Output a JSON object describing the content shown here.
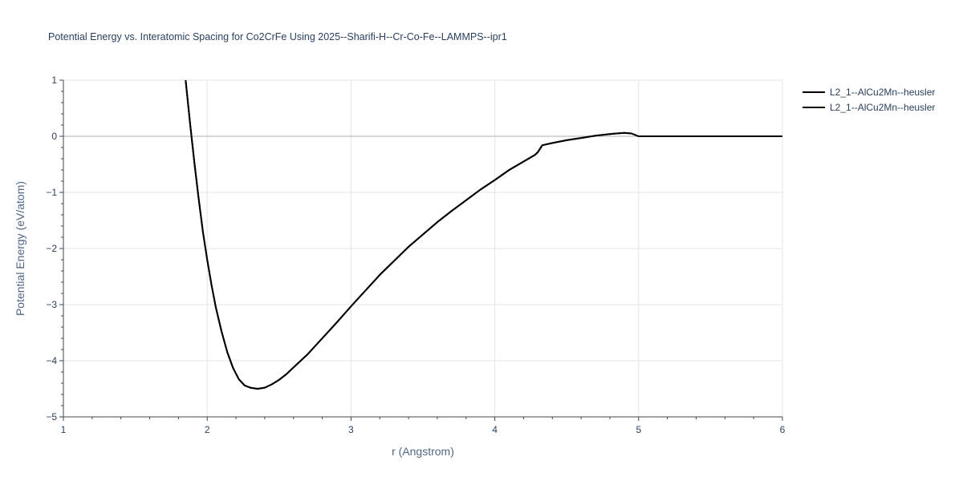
{
  "chart_data": {
    "type": "line",
    "title": "Potential Energy vs. Interatomic Spacing for Co2CrFe Using 2025--Sharifi-H--Cr-Co-Fe--LAMMPS--ipr1",
    "xlabel": "r (Angstrom)",
    "ylabel": "Potential Energy (eV/atom)",
    "xlim": [
      1,
      6
    ],
    "ylim": [
      -5,
      1
    ],
    "xticks": [
      1,
      2,
      3,
      4,
      5,
      6
    ],
    "yticks": [
      -5,
      -4,
      -3,
      -2,
      -1,
      0,
      1
    ],
    "ytick_labels": [
      "−5",
      "−4",
      "−3",
      "−2",
      "−1",
      "0",
      "1"
    ],
    "grid": true,
    "legend_position": "top-right",
    "series": [
      {
        "name": "L2_1--AlCu2Mn--heusler",
        "color": "#000000",
        "x": [
          1.85,
          1.88,
          1.91,
          1.94,
          1.97,
          2.0,
          2.03,
          2.06,
          2.1,
          2.14,
          2.18,
          2.22,
          2.26,
          2.3,
          2.35,
          2.4,
          2.45,
          2.5,
          2.55,
          2.6,
          2.7,
          2.8,
          2.9,
          3.0,
          3.1,
          3.2,
          3.3,
          3.4,
          3.5,
          3.6,
          3.7,
          3.8,
          3.9,
          4.0,
          4.1,
          4.2,
          4.28,
          4.3,
          4.33,
          4.4,
          4.5,
          4.6,
          4.7,
          4.8,
          4.9,
          4.95,
          5.0,
          5.1,
          5.5,
          6.0
        ],
        "y": [
          1.0,
          0.25,
          -0.45,
          -1.1,
          -1.7,
          -2.2,
          -2.65,
          -3.05,
          -3.48,
          -3.85,
          -4.13,
          -4.33,
          -4.44,
          -4.48,
          -4.5,
          -4.48,
          -4.42,
          -4.34,
          -4.24,
          -4.12,
          -3.88,
          -3.6,
          -3.32,
          -3.03,
          -2.75,
          -2.47,
          -2.22,
          -1.97,
          -1.75,
          -1.53,
          -1.33,
          -1.14,
          -0.95,
          -0.78,
          -0.6,
          -0.45,
          -0.33,
          -0.28,
          -0.16,
          -0.12,
          -0.07,
          -0.03,
          0.01,
          0.04,
          0.06,
          0.05,
          0.0,
          0.0,
          0.0,
          0.0
        ]
      },
      {
        "name": "L2_1--AlCu2Mn--heusler",
        "color": "#000000",
        "x": [
          1.85,
          1.88,
          1.91,
          1.94,
          1.97,
          2.0,
          2.03,
          2.06,
          2.1,
          2.14,
          2.18,
          2.22,
          2.26,
          2.3,
          2.35,
          2.4,
          2.45,
          2.5,
          2.55,
          2.6,
          2.7,
          2.8,
          2.9,
          3.0,
          3.1,
          3.2,
          3.3,
          3.4,
          3.5,
          3.6,
          3.7,
          3.8,
          3.9,
          4.0,
          4.1,
          4.2,
          4.28,
          4.3,
          4.33,
          4.4,
          4.5,
          4.6,
          4.7,
          4.8,
          4.9,
          4.95,
          5.0,
          5.1,
          5.5,
          6.0
        ],
        "y": [
          1.0,
          0.25,
          -0.45,
          -1.1,
          -1.7,
          -2.2,
          -2.65,
          -3.05,
          -3.48,
          -3.85,
          -4.13,
          -4.33,
          -4.44,
          -4.48,
          -4.5,
          -4.48,
          -4.42,
          -4.34,
          -4.24,
          -4.12,
          -3.88,
          -3.6,
          -3.32,
          -3.03,
          -2.75,
          -2.47,
          -2.22,
          -1.97,
          -1.75,
          -1.53,
          -1.33,
          -1.14,
          -0.95,
          -0.78,
          -0.6,
          -0.45,
          -0.33,
          -0.28,
          -0.16,
          -0.12,
          -0.07,
          -0.03,
          0.01,
          0.04,
          0.06,
          0.05,
          0.0,
          0.0,
          0.0,
          0.0
        ]
      }
    ]
  }
}
